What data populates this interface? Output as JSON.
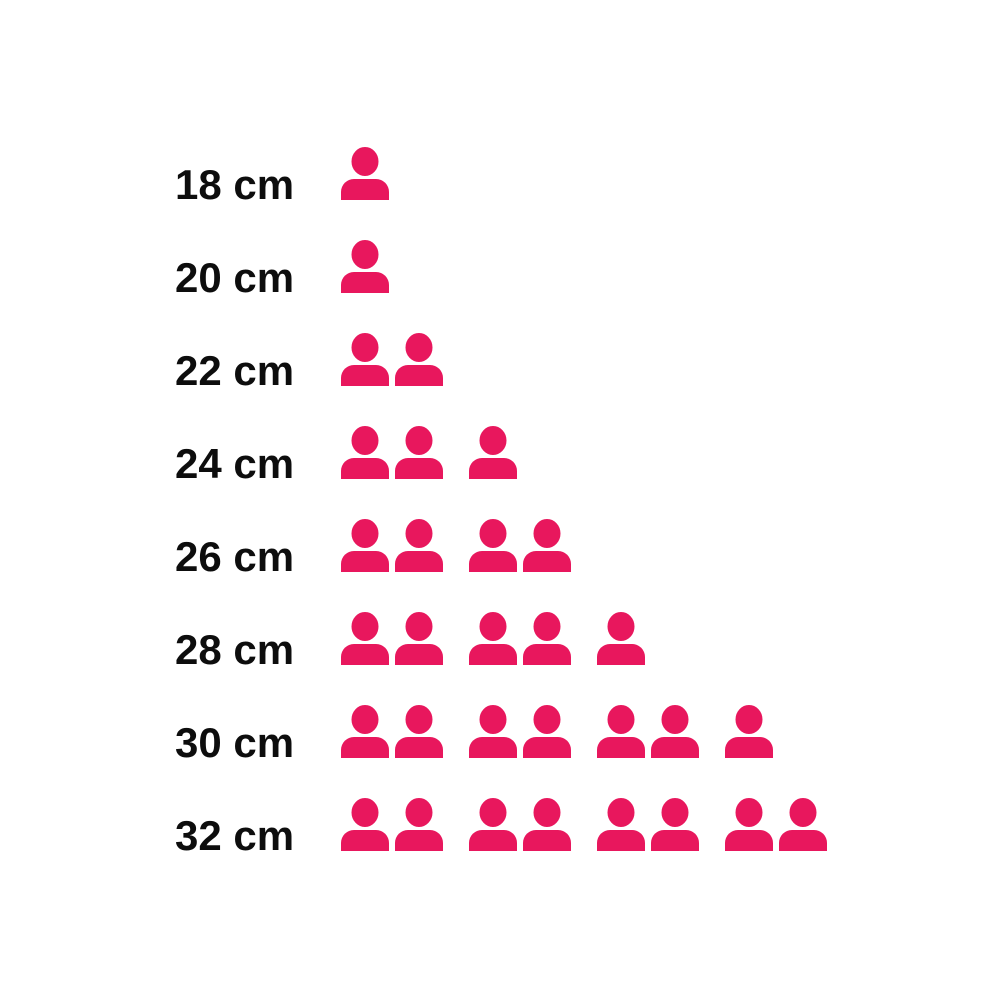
{
  "chart_data": {
    "type": "pictogram",
    "title": "",
    "categories": [
      "18 cm",
      "20 cm",
      "22 cm",
      "24 cm",
      "26 cm",
      "28 cm",
      "30 cm",
      "32 cm"
    ],
    "values": [
      1,
      1,
      2,
      3,
      4,
      5,
      7,
      8
    ],
    "icon": "person-icon",
    "icon_unit": 1,
    "icons_per_group": 2,
    "icon_color": "#E8175D",
    "label_color": "#0D0D0D",
    "background_color": "#FFFFFF",
    "legend_position": "none",
    "grid": false,
    "xlabel": "",
    "ylabel": ""
  }
}
